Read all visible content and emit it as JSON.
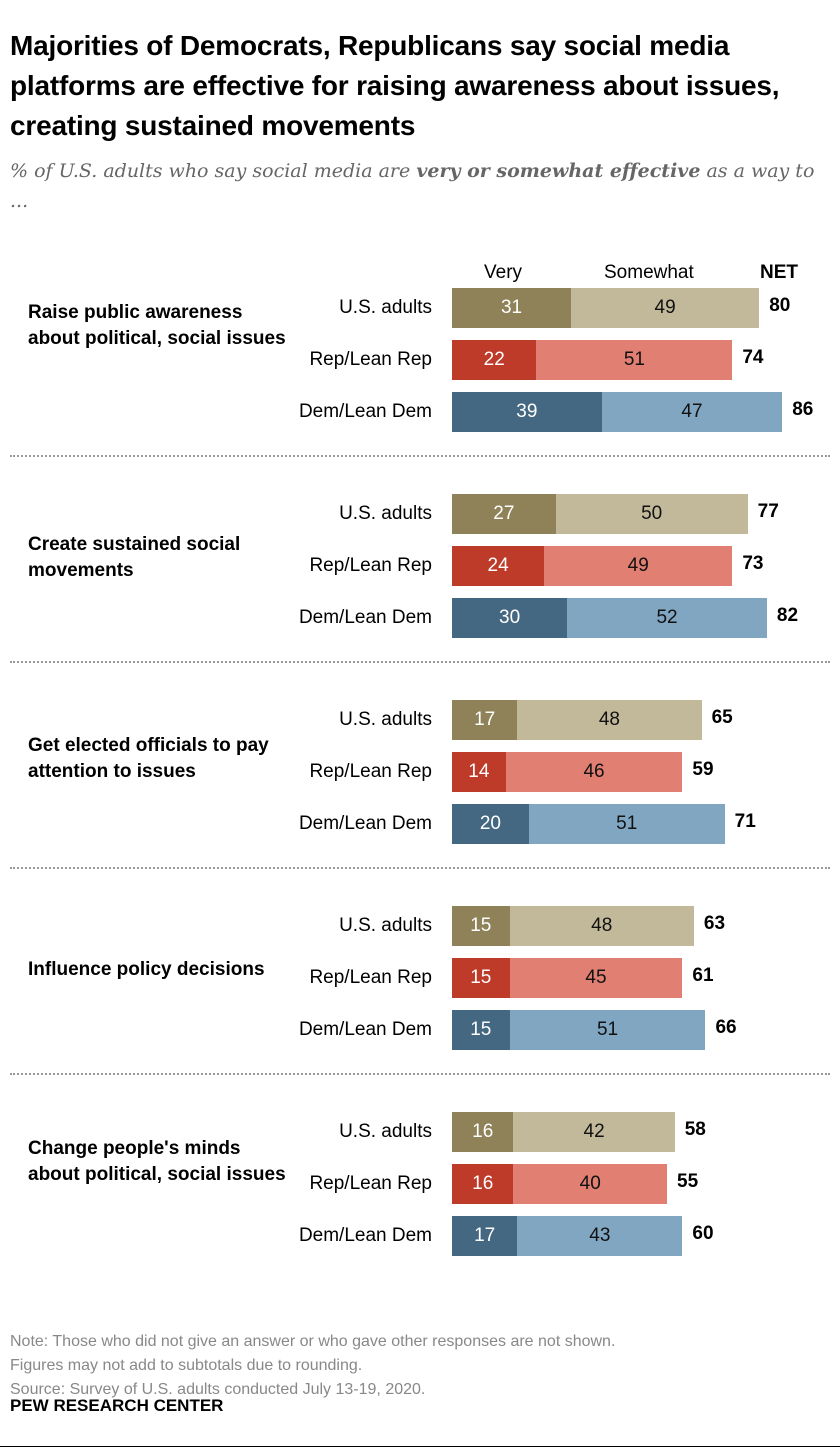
{
  "title": "Majorities of Democrats, Republicans say social media platforms are effective for raising awareness about issues, creating sustained movements",
  "subtitle_pre": "% of U.S. adults who say social media are ",
  "subtitle_bold": "very or somewhat effective",
  "subtitle_post": " as a way to ...",
  "chart_data": {
    "type": "bar",
    "orientation": "horizontal-stacked",
    "legend": [
      "Very",
      "Somewhat",
      "NET"
    ],
    "colors": {
      "U.S. adults": [
        "#8f8259",
        "#c2b99b"
      ],
      "Rep/Lean Rep": [
        "#be3a29",
        "#e07f72"
      ],
      "Dem/Lean Dem": [
        "#456882",
        "#81a6c2"
      ]
    },
    "groups": [
      {
        "label": "Raise public awareness about political, social issues",
        "rows": [
          {
            "name": "U.S. adults",
            "very": 31,
            "somewhat": 49,
            "net": 80
          },
          {
            "name": "Rep/Lean Rep",
            "very": 22,
            "somewhat": 51,
            "net": 74
          },
          {
            "name": "Dem/Lean Dem",
            "very": 39,
            "somewhat": 47,
            "net": 86
          }
        ]
      },
      {
        "label": "Create sustained social movements",
        "rows": [
          {
            "name": "U.S. adults",
            "very": 27,
            "somewhat": 50,
            "net": 77
          },
          {
            "name": "Rep/Lean Rep",
            "very": 24,
            "somewhat": 49,
            "net": 73
          },
          {
            "name": "Dem/Lean Dem",
            "very": 30,
            "somewhat": 52,
            "net": 82
          }
        ]
      },
      {
        "label": "Get elected officials to pay attention to issues",
        "rows": [
          {
            "name": "U.S. adults",
            "very": 17,
            "somewhat": 48,
            "net": 65
          },
          {
            "name": "Rep/Lean Rep",
            "very": 14,
            "somewhat": 46,
            "net": 59
          },
          {
            "name": "Dem/Lean Dem",
            "very": 20,
            "somewhat": 51,
            "net": 71
          }
        ]
      },
      {
        "label": "Influence policy decisions",
        "rows": [
          {
            "name": "U.S. adults",
            "very": 15,
            "somewhat": 48,
            "net": 63
          },
          {
            "name": "Rep/Lean Rep",
            "very": 15,
            "somewhat": 45,
            "net": 61
          },
          {
            "name": "Dem/Lean Dem",
            "very": 15,
            "somewhat": 51,
            "net": 66
          }
        ]
      },
      {
        "label": "Change people's minds about political, social issues",
        "rows": [
          {
            "name": "U.S. adults",
            "very": 16,
            "somewhat": 42,
            "net": 58
          },
          {
            "name": "Rep/Lean Rep",
            "very": 16,
            "somewhat": 40,
            "net": 55
          },
          {
            "name": "Dem/Lean Dem",
            "very": 17,
            "somewhat": 43,
            "net": 60
          }
        ]
      }
    ]
  },
  "note": "Note: Those who did not give an answer or who gave other responses are not shown.",
  "note2": "Figures may not add to subtotals due to rounding.",
  "source": "Source: Survey of U.S. adults conducted July 13-19, 2020.",
  "brand": "PEW RESEARCH CENTER"
}
